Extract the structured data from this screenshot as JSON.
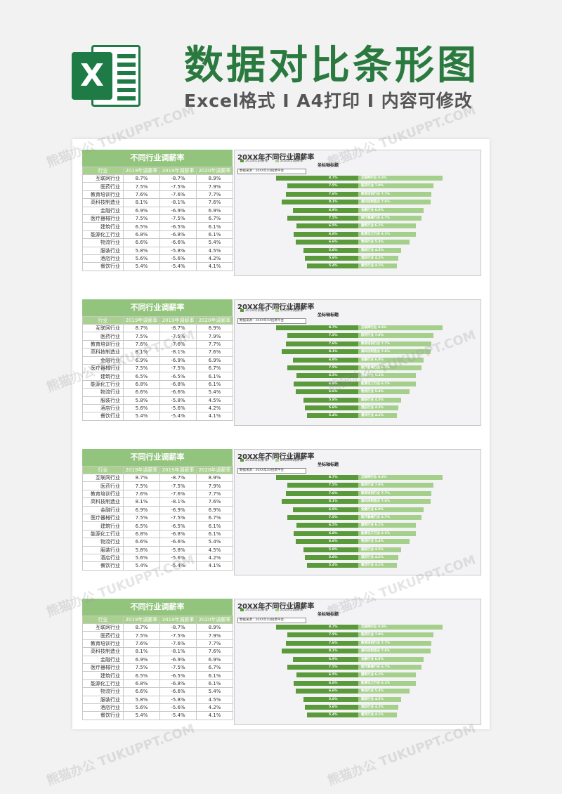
{
  "header": {
    "logo_letter": "X",
    "title": "数据对比条形图",
    "subtitle": "Excel格式 I A4打印 I 内容可修改"
  },
  "watermark": "熊猫办公 TUKUPPT.COM",
  "table": {
    "title": "不同行业调薪率",
    "columns": [
      "行业",
      "2019年调薪率",
      "2019年调薪率",
      "2020年调薪率"
    ],
    "rows": [
      [
        "互联网行业",
        "8.7%",
        "-8.7%",
        "8.9%"
      ],
      [
        "医药行业",
        "7.5%",
        "-7.5%",
        "7.9%"
      ],
      [
        "教育培训行业",
        "7.6%",
        "-7.6%",
        "7.7%"
      ],
      [
        "高科技制造业",
        "8.1%",
        "-8.1%",
        "7.6%"
      ],
      [
        "金融行业",
        "6.9%",
        "-6.9%",
        "6.9%"
      ],
      [
        "医疗器械行业",
        "7.5%",
        "-7.5%",
        "6.7%"
      ],
      [
        "建筑行业",
        "6.5%",
        "-6.5%",
        "6.1%"
      ],
      [
        "能源化工行业",
        "6.8%",
        "-6.8%",
        "6.1%"
      ],
      [
        "物流行业",
        "6.6%",
        "-6.6%",
        "5.4%"
      ],
      [
        "服装行业",
        "5.8%",
        "-5.8%",
        "4.5%"
      ],
      [
        "酒店行业",
        "5.6%",
        "-5.6%",
        "4.2%"
      ],
      [
        "餐饮行业",
        "5.4%",
        "-5.4%",
        "4.1%"
      ]
    ]
  },
  "chart_data": {
    "type": "bar",
    "title": "20XX年不同行业调薪率",
    "axis_title": "坐标轴标题",
    "source": "数据来源：20XX年XX招聘平台",
    "legend": [
      "2019年调薪率",
      "2020年调薪率"
    ],
    "categories": [
      "互联网行业",
      "医药行业",
      "教育培训行业",
      "高科技制造业",
      "金融行业",
      "医疗器械行业",
      "建筑行业",
      "能源化工行业",
      "物流行业",
      "服装行业",
      "酒店行业",
      "餐饮行业"
    ],
    "series": [
      {
        "name": "2019年调薪率",
        "values": [
          8.7,
          7.5,
          7.6,
          8.1,
          6.9,
          7.5,
          6.5,
          6.8,
          6.6,
          5.8,
          5.6,
          5.4
        ]
      },
      {
        "name": "2020年调薪率",
        "values": [
          8.9,
          7.9,
          7.7,
          7.6,
          6.9,
          6.7,
          6.1,
          6.1,
          5.4,
          4.5,
          4.2,
          4.1
        ]
      }
    ],
    "colors": {
      "left": "#5a9a3a",
      "right": "#a5d08c"
    }
  },
  "colors": {
    "brand_green": "#2a7a3f",
    "header_fill": "#93c47d"
  }
}
